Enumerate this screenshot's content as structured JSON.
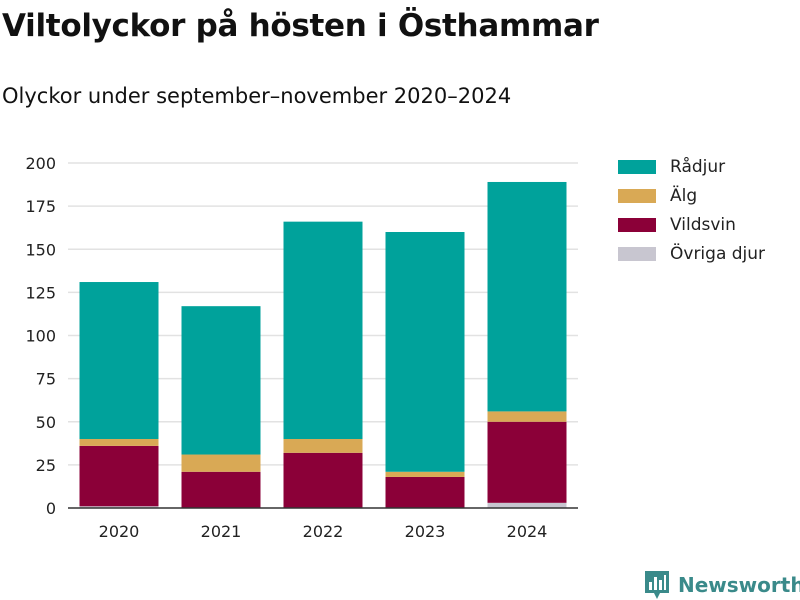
{
  "title": "Viltolyckor på hösten i Östhammar",
  "subtitle": "Olyckor under september–november 2020–2024",
  "brand": {
    "label": "Newsworthy",
    "icon": "bar-chart-logo-icon",
    "color": "#3a8a8a"
  },
  "chart_data": {
    "type": "bar",
    "stacked": true,
    "title": "Viltolyckor på hösten i Östhammar",
    "subtitle": "Olyckor under september–november 2020–2024",
    "categories": [
      "2020",
      "2021",
      "2022",
      "2023",
      "2024"
    ],
    "ylim": [
      0,
      200
    ],
    "yticks": [
      "0",
      "25",
      "50",
      "75",
      "100",
      "125",
      "150",
      "175",
      "200"
    ],
    "grid": true,
    "legend_position": "right",
    "series": [
      {
        "name": "Övriga djur",
        "color": "#c8c6d0",
        "values": [
          1,
          0,
          0,
          0,
          3
        ]
      },
      {
        "name": "Vildsvin",
        "color": "#8b0038",
        "values": [
          35,
          21,
          32,
          18,
          47
        ]
      },
      {
        "name": "Älg",
        "color": "#d9a955",
        "values": [
          4,
          10,
          8,
          3,
          6
        ]
      },
      {
        "name": "Rådjur",
        "color": "#00a29b",
        "values": [
          91,
          86,
          126,
          139,
          133
        ]
      }
    ]
  },
  "legend": [
    {
      "label": "Rådjur",
      "color": "#00a29b"
    },
    {
      "label": "Älg",
      "color": "#d9a955"
    },
    {
      "label": "Vildsvin",
      "color": "#8b0038"
    },
    {
      "label": "Övriga djur",
      "color": "#c8c6d0"
    }
  ]
}
